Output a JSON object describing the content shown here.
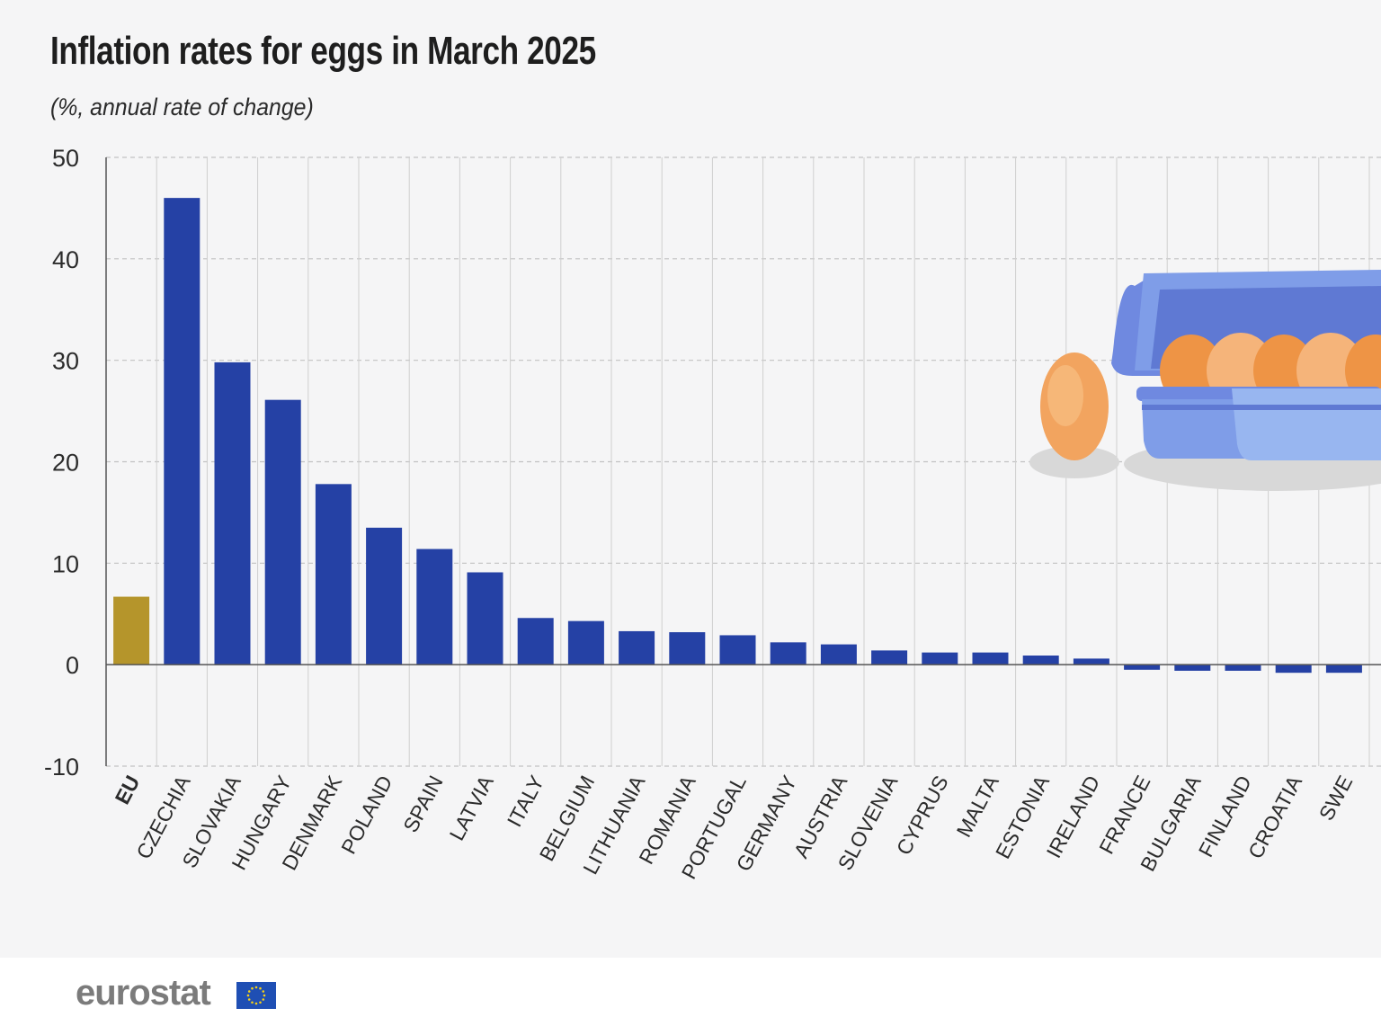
{
  "title": "Inflation rates for eggs in March 2025",
  "subtitle": "(%, annual rate of change)",
  "logo": "eurostat",
  "colors": {
    "eu_bar": "#b5952b",
    "country_bar": "#2541a5",
    "background": "#f5f5f6",
    "grid": "#c2c2c2"
  },
  "chart_data": {
    "type": "bar",
    "categories": [
      "EU",
      "CZECHIA",
      "SLOVAKIA",
      "HUNGARY",
      "DENMARK",
      "POLAND",
      "SPAIN",
      "LATVIA",
      "ITALY",
      "BELGIUM",
      "LITHUANIA",
      "ROMANIA",
      "PORTUGAL",
      "GERMANY",
      "AUSTRIA",
      "SLOVENIA",
      "CYPRUS",
      "MALTA",
      "ESTONIA",
      "IRELAND",
      "FRANCE",
      "BULGARIA",
      "FINLAND",
      "CROATIA",
      "SWE"
    ],
    "values": [
      6.7,
      46.0,
      29.8,
      26.1,
      17.8,
      13.5,
      11.4,
      9.1,
      4.6,
      4.3,
      3.3,
      3.2,
      2.9,
      2.2,
      2.0,
      1.4,
      1.2,
      1.2,
      0.9,
      0.6,
      -0.5,
      -0.6,
      -0.6,
      -0.8,
      -0.8
    ],
    "highlight": "EU",
    "ylim": [
      -10,
      50
    ],
    "yticks": [
      -10,
      0,
      10,
      20,
      30,
      40,
      50
    ],
    "grid": true
  }
}
